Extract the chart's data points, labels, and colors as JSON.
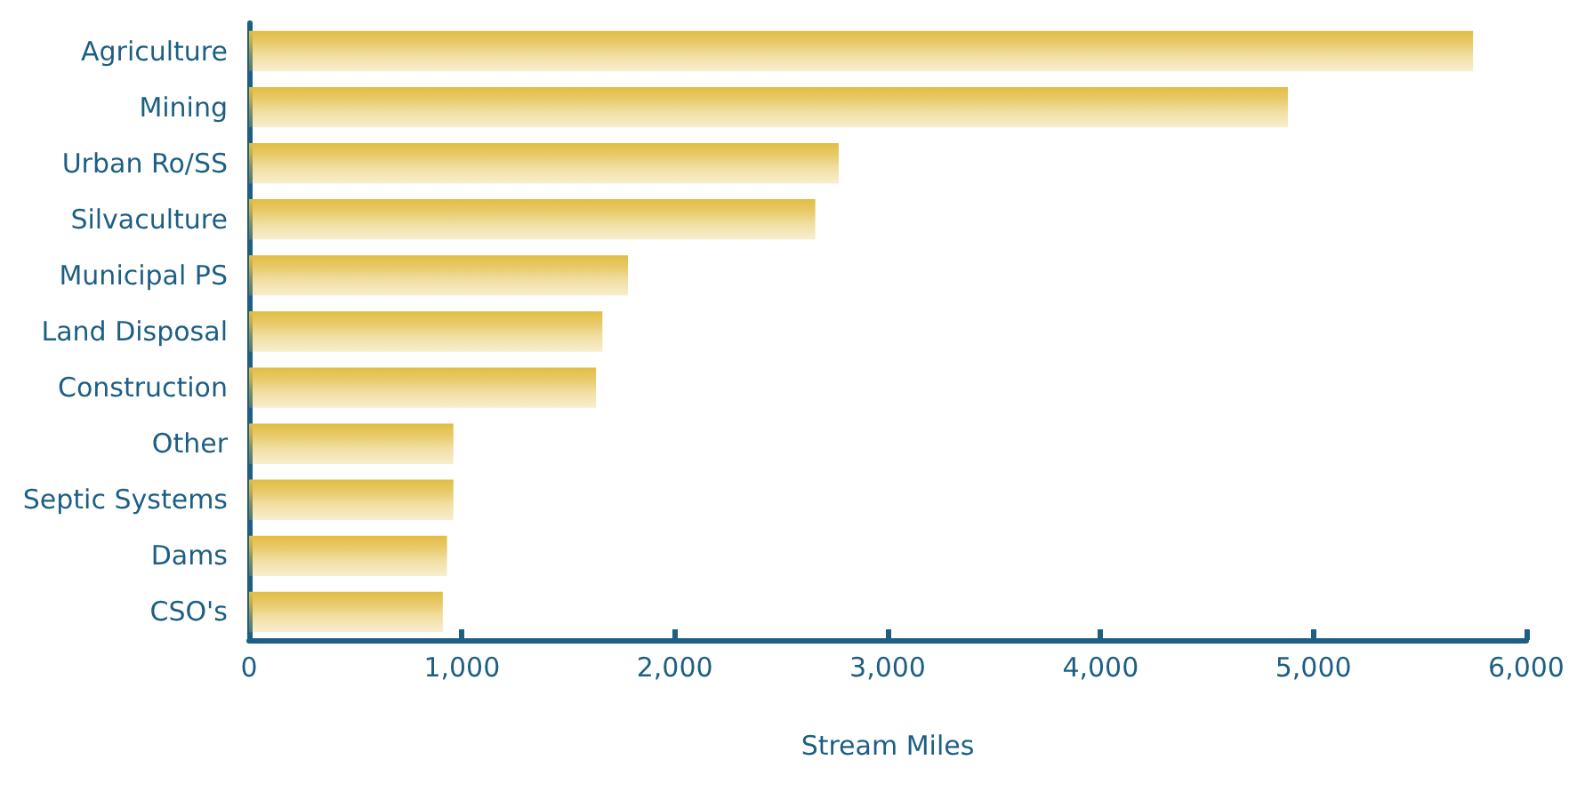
{
  "chart_data": {
    "type": "bar",
    "orientation": "horizontal",
    "xlabel": "Stream Miles",
    "categories": [
      "Agriculture",
      "Mining",
      "Urban Ro/SS",
      "Silvaculture",
      "Municipal PS",
      "Land Disposal",
      "Construction",
      "Other",
      "Septic Systems",
      "Dams",
      "CSO's"
    ],
    "values": [
      5750,
      4880,
      2770,
      2660,
      1780,
      1660,
      1630,
      960,
      960,
      930,
      910
    ],
    "color": "#e2bd44",
    "xlim": [
      0,
      6000
    ],
    "xticks": [
      0,
      {
        "value": 1000,
        "label": "1,000"
      },
      {
        "value": 2000,
        "label": "2,000"
      },
      {
        "value": 3000,
        "label": "3,000"
      },
      {
        "value": 4000,
        "label": "4,000"
      },
      {
        "value": 5000,
        "label": "5,000"
      },
      {
        "value": 6000,
        "label": "6,000"
      }
    ],
    "grid": false
  }
}
